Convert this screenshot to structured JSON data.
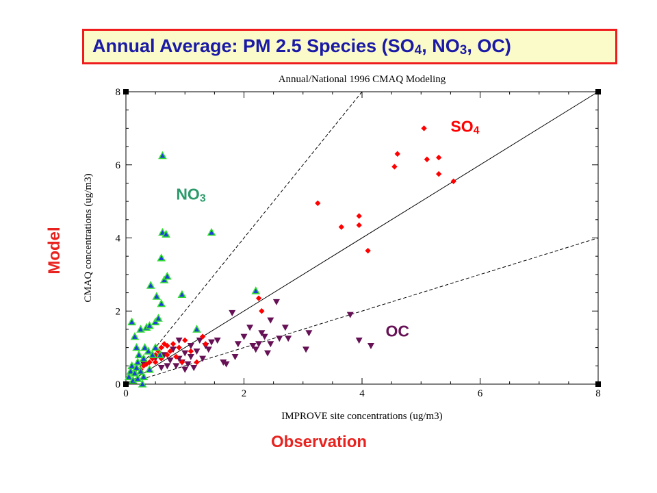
{
  "banner": {
    "text_main": "Annual Average: PM 2.5 Species (SO",
    "sub1": "4",
    "text_mid1": ", NO",
    "sub2": "3",
    "text_end": ", OC)"
  },
  "outer_labels": {
    "y": "Model",
    "x": "Observation"
  },
  "colors": {
    "banner_border": "#ee1c1c",
    "banner_bg": "#fbfbca",
    "banner_text": "#1a1aa6",
    "so4": "#ff0000",
    "no3_fill": "#1c3fd8",
    "no3_edge": "#33dd33",
    "oc": "#661155",
    "no3_label": "#2a9a6a",
    "outer_label": "#e8231f"
  },
  "chart_data": {
    "type": "scatter",
    "title": "Annual/National 1996 CMAQ Modeling",
    "xlabel": "IMPROVE site concentrations (ug/m3)",
    "ylabel": "CMAQ concentrations (ug/m3)",
    "xlim": [
      0,
      8
    ],
    "ylim": [
      0,
      8
    ],
    "xticks": [
      "0",
      "2",
      "4",
      "6",
      "8"
    ],
    "yticks": [
      "0",
      "2",
      "4",
      "6",
      "8"
    ],
    "grid": false,
    "reference_lines": [
      {
        "name": "1:1",
        "slope": 1,
        "style": "solid"
      },
      {
        "name": "2:1",
        "slope": 2,
        "style": "dashed"
      },
      {
        "name": "1:2",
        "slope": 0.5,
        "style": "dashed"
      }
    ],
    "annotations": [
      {
        "text": "SO",
        "sub": "4",
        "x": 5.5,
        "y": 6.9,
        "color": "#ff0000"
      },
      {
        "text": "NO",
        "sub": "3",
        "x": 0.85,
        "y": 5.05,
        "color": "#2a9a6a"
      },
      {
        "text": "OC",
        "sub": "",
        "x": 4.4,
        "y": 1.3,
        "color": "#661155"
      }
    ],
    "series": [
      {
        "name": "SO4",
        "marker": "diamond",
        "points": [
          [
            0.25,
            0.4
          ],
          [
            0.3,
            0.5
          ],
          [
            0.35,
            0.55
          ],
          [
            0.4,
            0.6
          ],
          [
            0.45,
            0.7
          ],
          [
            0.5,
            0.8
          ],
          [
            0.5,
            0.6
          ],
          [
            0.55,
            0.9
          ],
          [
            0.6,
            1.0
          ],
          [
            0.6,
            0.7
          ],
          [
            0.65,
            1.1
          ],
          [
            0.7,
            0.8
          ],
          [
            0.7,
            1.05
          ],
          [
            0.75,
            0.9
          ],
          [
            0.8,
            1.1
          ],
          [
            0.85,
            0.75
          ],
          [
            0.9,
            1.0
          ],
          [
            0.95,
            0.6
          ],
          [
            1.0,
            1.2
          ],
          [
            1.1,
            0.9
          ],
          [
            1.2,
            0.6
          ],
          [
            1.3,
            1.3
          ],
          [
            1.35,
            1.1
          ],
          [
            2.25,
            2.35
          ],
          [
            2.3,
            2.0
          ],
          [
            3.25,
            4.95
          ],
          [
            3.65,
            4.3
          ],
          [
            3.95,
            4.6
          ],
          [
            3.95,
            4.35
          ],
          [
            4.1,
            3.65
          ],
          [
            4.55,
            5.95
          ],
          [
            4.6,
            6.3
          ],
          [
            5.05,
            7.0
          ],
          [
            5.1,
            6.15
          ],
          [
            5.3,
            6.2
          ],
          [
            5.3,
            5.75
          ],
          [
            5.55,
            5.55
          ]
        ]
      },
      {
        "name": "NO3",
        "marker": "triangle-up",
        "points": [
          [
            0.05,
            0.2
          ],
          [
            0.08,
            0.35
          ],
          [
            0.1,
            0.5
          ],
          [
            0.1,
            1.7
          ],
          [
            0.12,
            0.1
          ],
          [
            0.15,
            0.3
          ],
          [
            0.15,
            1.3
          ],
          [
            0.18,
            0.45
          ],
          [
            0.18,
            1.0
          ],
          [
            0.2,
            0.6
          ],
          [
            0.2,
            0.15
          ],
          [
            0.22,
            0.8
          ],
          [
            0.25,
            1.5
          ],
          [
            0.25,
            0.35
          ],
          [
            0.28,
            0.0
          ],
          [
            0.3,
            0.7
          ],
          [
            0.3,
            0.2
          ],
          [
            0.32,
            1.0
          ],
          [
            0.35,
            1.55
          ],
          [
            0.38,
            0.9
          ],
          [
            0.4,
            1.6
          ],
          [
            0.4,
            0.4
          ],
          [
            0.42,
            2.7
          ],
          [
            0.45,
            0.8
          ],
          [
            0.5,
            1.7
          ],
          [
            0.5,
            1.0
          ],
          [
            0.52,
            2.4
          ],
          [
            0.55,
            1.8
          ],
          [
            0.58,
            0.8
          ],
          [
            0.6,
            2.2
          ],
          [
            0.6,
            3.45
          ],
          [
            0.62,
            6.25
          ],
          [
            0.62,
            4.15
          ],
          [
            0.65,
            2.85
          ],
          [
            0.68,
            4.1
          ],
          [
            0.7,
            2.95
          ],
          [
            0.95,
            2.45
          ],
          [
            1.2,
            1.5
          ],
          [
            1.45,
            4.15
          ],
          [
            2.2,
            2.55
          ]
        ]
      },
      {
        "name": "OC",
        "marker": "triangle-down",
        "points": [
          [
            0.3,
            0.55
          ],
          [
            0.5,
            0.7
          ],
          [
            0.6,
            0.45
          ],
          [
            0.65,
            0.8
          ],
          [
            0.7,
            0.5
          ],
          [
            0.75,
            0.65
          ],
          [
            0.8,
            0.95
          ],
          [
            0.85,
            0.5
          ],
          [
            0.9,
            0.7
          ],
          [
            0.9,
            1.2
          ],
          [
            0.95,
            0.6
          ],
          [
            1.0,
            0.4
          ],
          [
            1.0,
            0.85
          ],
          [
            1.05,
            0.55
          ],
          [
            1.1,
            0.75
          ],
          [
            1.1,
            1.05
          ],
          [
            1.15,
            0.45
          ],
          [
            1.2,
            0.9
          ],
          [
            1.25,
            1.2
          ],
          [
            1.3,
            0.7
          ],
          [
            1.35,
            1.05
          ],
          [
            1.4,
            0.95
          ],
          [
            1.45,
            1.15
          ],
          [
            1.55,
            1.2
          ],
          [
            1.65,
            0.6
          ],
          [
            1.7,
            0.55
          ],
          [
            1.8,
            1.95
          ],
          [
            1.85,
            0.75
          ],
          [
            1.9,
            1.1
          ],
          [
            2.0,
            1.3
          ],
          [
            2.1,
            1.55
          ],
          [
            2.15,
            1.05
          ],
          [
            2.2,
            0.95
          ],
          [
            2.25,
            1.1
          ],
          [
            2.3,
            1.4
          ],
          [
            2.35,
            1.3
          ],
          [
            2.4,
            0.85
          ],
          [
            2.45,
            1.1
          ],
          [
            2.45,
            1.75
          ],
          [
            2.55,
            2.25
          ],
          [
            2.6,
            1.25
          ],
          [
            2.7,
            1.55
          ],
          [
            2.75,
            1.25
          ],
          [
            3.05,
            0.95
          ],
          [
            3.1,
            1.4
          ],
          [
            3.8,
            1.9
          ],
          [
            3.95,
            1.2
          ],
          [
            4.15,
            1.05
          ]
        ]
      }
    ]
  }
}
